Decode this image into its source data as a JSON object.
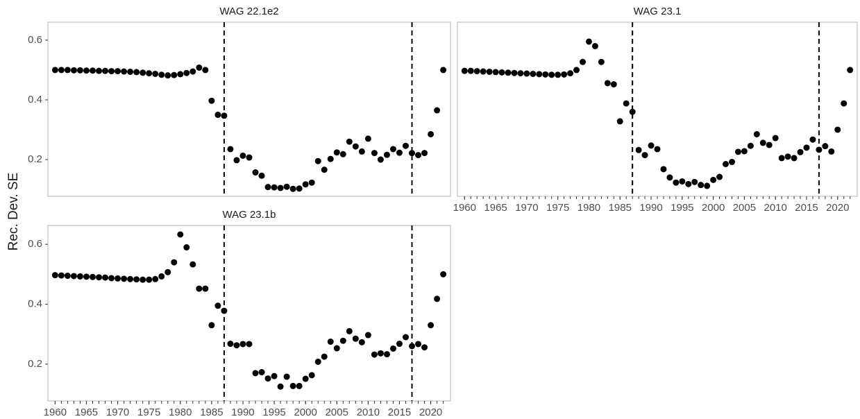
{
  "ylabel": "Rec. Dev. SE",
  "chart_data": [
    {
      "type": "scatter",
      "title": "WAG 22.1e2",
      "x": [
        1960,
        1961,
        1962,
        1963,
        1964,
        1965,
        1966,
        1967,
        1968,
        1969,
        1970,
        1971,
        1972,
        1973,
        1974,
        1975,
        1976,
        1977,
        1978,
        1979,
        1980,
        1981,
        1982,
        1983,
        1984,
        1985,
        1986,
        1987,
        1988,
        1989,
        1990,
        1991,
        1992,
        1993,
        1994,
        1995,
        1996,
        1997,
        1998,
        1999,
        2000,
        2001,
        2002,
        2003,
        2004,
        2005,
        2006,
        2007,
        2008,
        2009,
        2010,
        2011,
        2012,
        2013,
        2014,
        2015,
        2016,
        2017,
        2018,
        2019,
        2020,
        2021,
        2022
      ],
      "values": [
        0.5,
        0.5,
        0.5,
        0.499,
        0.499,
        0.498,
        0.498,
        0.497,
        0.497,
        0.496,
        0.496,
        0.495,
        0.494,
        0.493,
        0.491,
        0.489,
        0.487,
        0.484,
        0.482,
        0.483,
        0.486,
        0.49,
        0.495,
        0.508,
        0.5,
        0.397,
        0.35,
        0.347,
        0.235,
        0.198,
        0.213,
        0.207,
        0.157,
        0.146,
        0.108,
        0.107,
        0.105,
        0.109,
        0.102,
        0.103,
        0.117,
        0.123,
        0.195,
        0.166,
        0.202,
        0.224,
        0.218,
        0.26,
        0.244,
        0.227,
        0.27,
        0.222,
        0.2,
        0.216,
        0.235,
        0.223,
        0.246,
        0.222,
        0.215,
        0.222,
        0.285,
        0.365,
        0.5
      ],
      "color": "#000000",
      "vlines": [
        1987,
        2017
      ],
      "xlim": [
        1958.85,
        2023.15
      ],
      "ylim": [
        0.077,
        0.66
      ],
      "yticks": [
        0.2,
        0.4,
        0.6
      ]
    },
    {
      "type": "scatter",
      "title": "WAG 23.1",
      "x": [
        1960,
        1961,
        1962,
        1963,
        1964,
        1965,
        1966,
        1967,
        1968,
        1969,
        1970,
        1971,
        1972,
        1973,
        1974,
        1975,
        1976,
        1977,
        1978,
        1979,
        1980,
        1981,
        1982,
        1983,
        1984,
        1985,
        1986,
        1987,
        1988,
        1989,
        1990,
        1991,
        1992,
        1993,
        1994,
        1995,
        1996,
        1997,
        1998,
        1999,
        2000,
        2001,
        2002,
        2003,
        2004,
        2005,
        2006,
        2007,
        2008,
        2009,
        2010,
        2011,
        2012,
        2013,
        2014,
        2015,
        2016,
        2017,
        2018,
        2019,
        2020,
        2021,
        2022
      ],
      "values": [
        0.497,
        0.497,
        0.496,
        0.495,
        0.494,
        0.493,
        0.492,
        0.491,
        0.49,
        0.489,
        0.488,
        0.487,
        0.486,
        0.485,
        0.484,
        0.484,
        0.485,
        0.489,
        0.5,
        0.527,
        0.595,
        0.58,
        0.527,
        0.456,
        0.452,
        0.328,
        0.388,
        0.36,
        0.232,
        0.215,
        0.247,
        0.235,
        0.168,
        0.14,
        0.123,
        0.127,
        0.118,
        0.125,
        0.115,
        0.112,
        0.132,
        0.142,
        0.185,
        0.192,
        0.226,
        0.228,
        0.246,
        0.285,
        0.256,
        0.249,
        0.272,
        0.205,
        0.21,
        0.205,
        0.225,
        0.24,
        0.267,
        0.233,
        0.245,
        0.227,
        0.3,
        0.388,
        0.5
      ],
      "color": "#000000",
      "vlines": [
        1987,
        2017
      ],
      "xlim": [
        1958.85,
        2023.15
      ],
      "ylim": [
        0.077,
        0.66
      ],
      "xticks": [
        1960,
        1965,
        1970,
        1975,
        1980,
        1985,
        1990,
        1995,
        2000,
        2005,
        2010,
        2015,
        2020
      ]
    },
    {
      "type": "scatter",
      "title": "WAG 23.1b",
      "x": [
        1960,
        1961,
        1962,
        1963,
        1964,
        1965,
        1966,
        1967,
        1968,
        1969,
        1970,
        1971,
        1972,
        1973,
        1974,
        1975,
        1976,
        1977,
        1978,
        1979,
        1980,
        1981,
        1982,
        1983,
        1984,
        1985,
        1986,
        1987,
        1988,
        1989,
        1990,
        1991,
        1992,
        1993,
        1994,
        1995,
        1996,
        1997,
        1998,
        1999,
        2000,
        2001,
        2002,
        2003,
        2004,
        2005,
        2006,
        2007,
        2008,
        2009,
        2010,
        2011,
        2012,
        2013,
        2014,
        2015,
        2016,
        2017,
        2018,
        2019,
        2020,
        2021,
        2022
      ],
      "values": [
        0.497,
        0.496,
        0.495,
        0.494,
        0.493,
        0.492,
        0.491,
        0.49,
        0.489,
        0.487,
        0.486,
        0.485,
        0.484,
        0.483,
        0.482,
        0.482,
        0.484,
        0.493,
        0.507,
        0.54,
        0.633,
        0.59,
        0.533,
        0.452,
        0.452,
        0.33,
        0.395,
        0.378,
        0.268,
        0.263,
        0.267,
        0.267,
        0.17,
        0.173,
        0.152,
        0.16,
        0.125,
        0.158,
        0.127,
        0.127,
        0.151,
        0.163,
        0.208,
        0.225,
        0.275,
        0.253,
        0.278,
        0.31,
        0.285,
        0.273,
        0.297,
        0.232,
        0.236,
        0.233,
        0.252,
        0.268,
        0.29,
        0.26,
        0.267,
        0.256,
        0.33,
        0.418,
        0.5
      ],
      "color": "#000000",
      "vlines": [
        1987,
        2017
      ],
      "xlim": [
        1958.85,
        2023.15
      ],
      "ylim": [
        0.077,
        0.663
      ],
      "yticks": [
        0.2,
        0.4,
        0.6
      ],
      "xticks": [
        1960,
        1965,
        1970,
        1975,
        1980,
        1985,
        1990,
        1995,
        2000,
        2005,
        2010,
        2015,
        2020
      ]
    }
  ]
}
